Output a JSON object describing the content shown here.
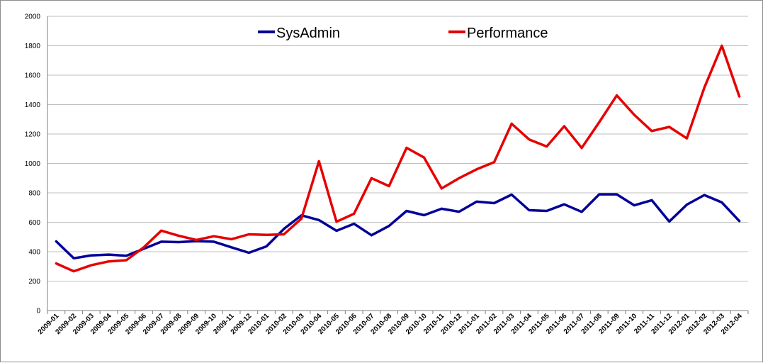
{
  "chart_data": {
    "type": "line",
    "categories": [
      "2009-01",
      "2009-02",
      "2009-03",
      "2009-04",
      "2009-05",
      "2009-06",
      "2009-07",
      "2009-08",
      "2009-09",
      "2009-10",
      "2009-11",
      "2009-12",
      "2010-01",
      "2010-02",
      "2010-03",
      "2010-04",
      "2010-05",
      "2010-06",
      "2010-07",
      "2010-08",
      "2010-09",
      "2010-10",
      "2010-11",
      "2010-12",
      "2011-01",
      "2011-02",
      "2011-03",
      "2011-04",
      "2011-05",
      "2011-06",
      "2011-07",
      "2011-08",
      "2011-09",
      "2011-10",
      "2011-11",
      "2011-12",
      "2012-01",
      "2012-02",
      "2012-03",
      "2012-04"
    ],
    "series": [
      {
        "name": "SysAdmin",
        "color": "#000099",
        "values": [
          470,
          355,
          375,
          380,
          372,
          420,
          468,
          465,
          472,
          468,
          430,
          393,
          436,
          555,
          647,
          615,
          542,
          590,
          512,
          575,
          677,
          648,
          692,
          672,
          740,
          730,
          788,
          682,
          677,
          722,
          671,
          790,
          790,
          715,
          750,
          605,
          720,
          785,
          735,
          608
        ]
      },
      {
        "name": "Performance",
        "color": "#e60000",
        "values": [
          320,
          267,
          308,
          334,
          342,
          430,
          543,
          508,
          480,
          505,
          485,
          518,
          514,
          518,
          625,
          1015,
          604,
          658,
          900,
          846,
          1106,
          1040,
          830,
          900,
          960,
          1008,
          1270,
          1163,
          1115,
          1253,
          1105,
          1280,
          1462,
          1330,
          1220,
          1248,
          1170,
          1515,
          1800,
          1455
        ]
      }
    ],
    "title": "",
    "xlabel": "",
    "ylabel": "",
    "ylim": [
      0,
      2000
    ],
    "yticks": [
      "0",
      "200",
      "400",
      "600",
      "800",
      "1000",
      "1200",
      "1400",
      "1600",
      "1800",
      "2000"
    ],
    "grid": true,
    "legend_position": "top-center"
  }
}
